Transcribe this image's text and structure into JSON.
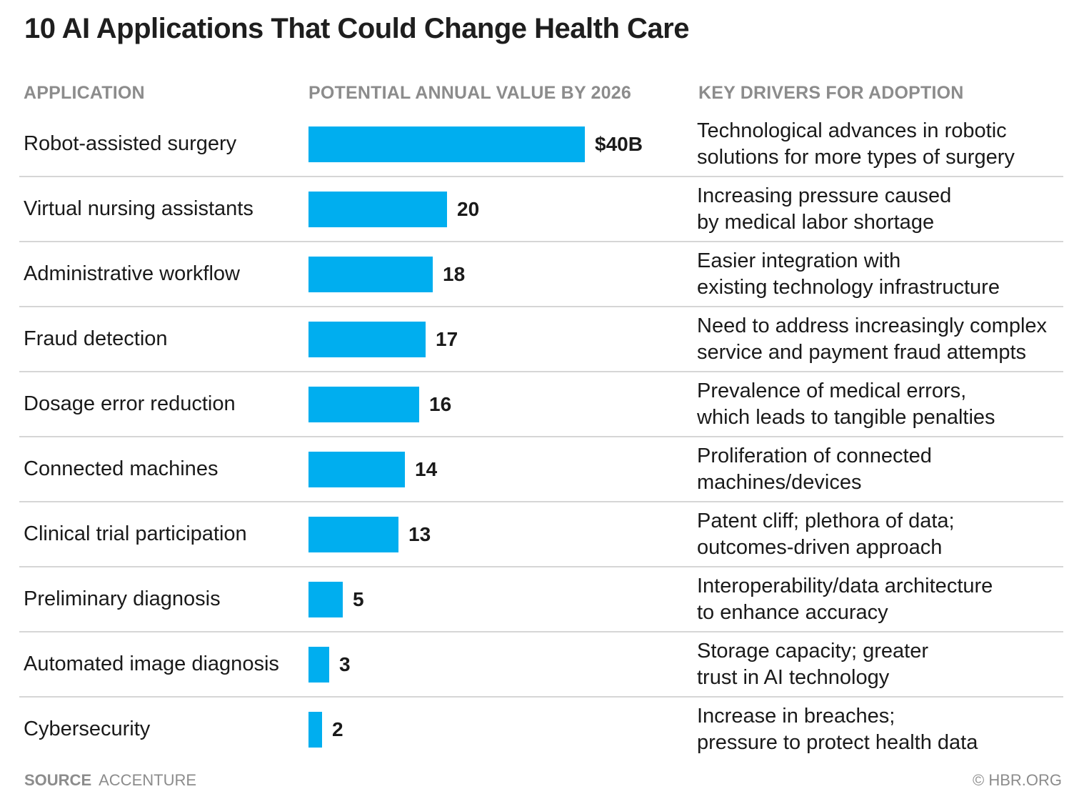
{
  "title": "10 AI Applications That Could Change Health Care",
  "columns": {
    "application": "APPLICATION",
    "value": "POTENTIAL ANNUAL VALUE BY 2026",
    "drivers": "KEY DRIVERS FOR ADOPTION"
  },
  "chart_data": {
    "type": "bar",
    "orientation": "horizontal",
    "title": "10 AI Applications That Could Change Health Care",
    "xlabel": "POTENTIAL ANNUAL VALUE BY 2026",
    "unit": "$B",
    "xlim": [
      0,
      40
    ],
    "grid": false,
    "bar_color": "#00aeef",
    "categories": [
      "Robot-assisted surgery",
      "Virtual nursing assistants",
      "Administrative workflow",
      "Fraud detection",
      "Dosage error reduction",
      "Connected machines",
      "Clinical trial participation",
      "Preliminary diagnosis",
      "Automated image diagnosis",
      "Cybersecurity"
    ],
    "values": [
      40,
      20,
      18,
      17,
      16,
      14,
      13,
      5,
      3,
      2
    ],
    "value_labels": [
      "$40B",
      "20",
      "18",
      "17",
      "16",
      "14",
      "13",
      "5",
      "3",
      "2"
    ]
  },
  "drivers": [
    [
      "Technological advances in robotic",
      "solutions for more types of surgery"
    ],
    [
      "Increasing pressure caused",
      "by medical labor shortage"
    ],
    [
      "Easier integration with",
      "existing technology infrastructure"
    ],
    [
      "Need to address increasingly complex",
      "service and payment fraud attempts"
    ],
    [
      "Prevalence of medical errors,",
      "which leads to tangible penalties"
    ],
    [
      "Proliferation of connected",
      "machines/devices"
    ],
    [
      "Patent cliff; plethora of data;",
      "outcomes-driven approach"
    ],
    [
      "Interoperability/data architecture",
      "to enhance accuracy"
    ],
    [
      "Storage capacity; greater",
      "trust in AI technology"
    ],
    [
      "Increase in breaches;",
      "pressure to protect health data"
    ]
  ],
  "footer": {
    "source_key": "SOURCE",
    "source_value": "ACCENTURE",
    "copyright": "© HBR.ORG"
  }
}
